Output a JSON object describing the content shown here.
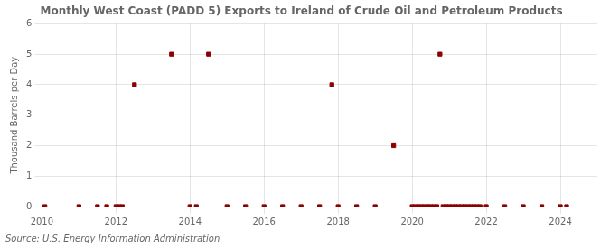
{
  "chart_data": {
    "type": "scatter",
    "title": "Monthly West Coast (PADD 5) Exports to Ireland of Crude Oil and Petroleum Products",
    "y_label": "Thousand Barrels per Day",
    "annotations": [
      "Source: U.S. Energy Information Administration"
    ],
    "x": [
      2010.08,
      2011.0,
      2011.5,
      2011.75,
      2012.0,
      2012.08,
      2012.17,
      2012.5,
      2013.5,
      2014.0,
      2014.17,
      2014.5,
      2015.0,
      2015.5,
      2016.0,
      2016.5,
      2017.0,
      2017.5,
      2017.83,
      2018.0,
      2018.5,
      2019.0,
      2019.5,
      2020.0,
      2020.083,
      2020.167,
      2020.25,
      2020.333,
      2020.417,
      2020.5,
      2020.583,
      2020.667,
      2020.75,
      2020.833,
      2020.917,
      2021.0,
      2021.083,
      2021.167,
      2021.25,
      2021.333,
      2021.417,
      2021.5,
      2021.583,
      2021.667,
      2021.75,
      2021.833,
      2022.0,
      2022.5,
      2023.0,
      2023.5,
      2024.0,
      2024.17
    ],
    "values": [
      0.0,
      0.0,
      0.0,
      0.0,
      0.0,
      0.0,
      0.0,
      4.0,
      5.0,
      0.0,
      0.0,
      5.0,
      0.0,
      0.0,
      0.0,
      0.0,
      0.0,
      0.0,
      4.0,
      0.0,
      0.0,
      0.0,
      2.0,
      0.0,
      0.0,
      0.0,
      0.0,
      0.0,
      0.0,
      0.0,
      0.0,
      0.0,
      5.0,
      0.0,
      0.0,
      0.0,
      0.0,
      0.0,
      0.0,
      0.0,
      0.0,
      0.0,
      0.0,
      0.0,
      0.0,
      0.0,
      0.0,
      0.0,
      0.0,
      0.0,
      0.0,
      0.0
    ],
    "color": "#8b0000",
    "marker": "square",
    "xlim": [
      2010,
      2025
    ],
    "ylim": [
      0,
      6
    ],
    "xticks": [
      2010,
      2012,
      2014,
      2016,
      2018,
      2020,
      2022,
      2024
    ],
    "yticks": [
      0,
      1,
      2,
      3,
      4,
      5,
      6
    ],
    "grid": true
  }
}
